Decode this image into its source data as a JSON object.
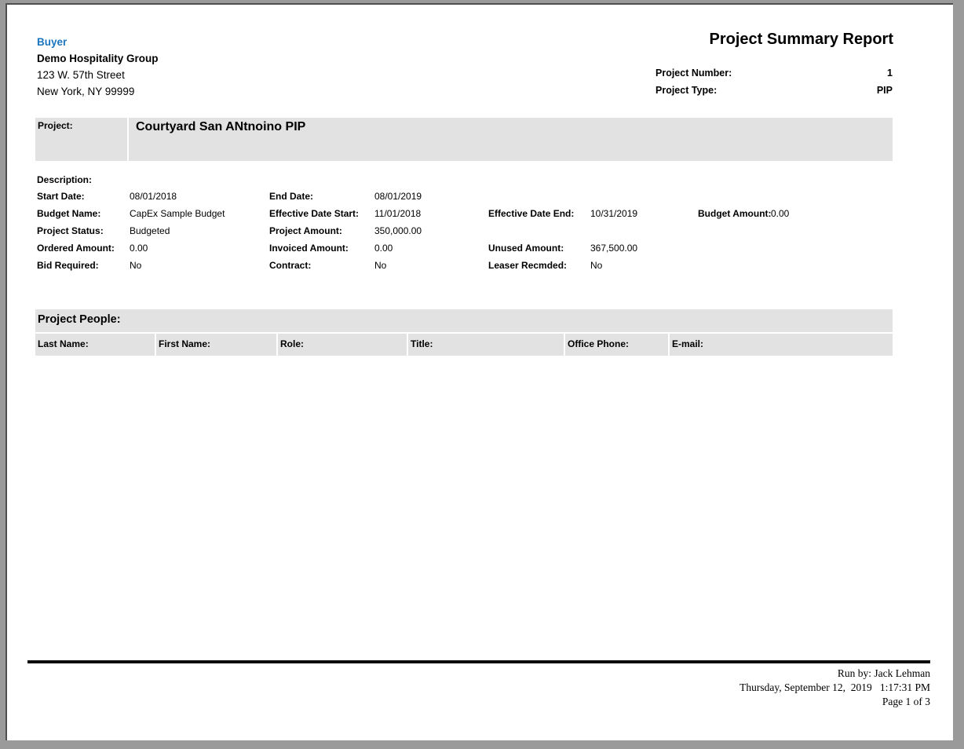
{
  "colors": {
    "accent_blue": "#1b76bf",
    "band_gray": "#e2e2e2",
    "frame_gray": "#9a9a9a",
    "page_border": "#4f4f4f",
    "rule_black": "#0a0a0a"
  },
  "buyer": {
    "label": "Buyer",
    "company": "Demo Hospitality Group",
    "address_line1": "123 W. 57th Street",
    "address_line2": "New York, NY 99999"
  },
  "header": {
    "report_title": "Project Summary Report",
    "project_number_label": "Project Number:",
    "project_number_value": "1",
    "project_type_label": "Project Type:",
    "project_type_value": "PIP"
  },
  "project_banner": {
    "label": "Project:",
    "value": "Courtyard San ANtnoino PIP"
  },
  "description": {
    "label": "Description:",
    "value": ""
  },
  "fields": {
    "start_date": {
      "label": "Start Date:",
      "value": "08/01/2018"
    },
    "end_date": {
      "label": "End Date:",
      "value": "08/01/2019"
    },
    "budget_name": {
      "label": "Budget Name:",
      "value": "CapEx Sample Budget"
    },
    "effective_date_start": {
      "label": "Effective Date Start:",
      "value": "11/01/2018"
    },
    "effective_date_end": {
      "label": "Effective Date End:",
      "value": "10/31/2019"
    },
    "budget_amount": {
      "label": "Budget Amount:",
      "value": "0.00"
    },
    "project_status": {
      "label": "Project Status:",
      "value": "Budgeted"
    },
    "project_amount": {
      "label": "Project Amount:",
      "value": "350,000.00"
    },
    "ordered_amount": {
      "label": "Ordered Amount:",
      "value": "0.00"
    },
    "invoiced_amount": {
      "label": "Invoiced Amount:",
      "value": "0.00"
    },
    "unused_amount": {
      "label": "Unused Amount:",
      "value": "367,500.00"
    },
    "bid_required": {
      "label": "Bid Required:",
      "value": "No"
    },
    "contract": {
      "label": "Contract:",
      "value": "No"
    },
    "leaser_recmded": {
      "label": "Leaser Recmded:",
      "value": "No"
    }
  },
  "project_people": {
    "section_title": "Project People:",
    "columns": [
      "Last Name:",
      "First Name:",
      "Role:",
      "Title:",
      "Office Phone:",
      "E-mail:"
    ],
    "rows": []
  },
  "footer": {
    "run_by": "Run by: Jack Lehman",
    "datetime": "Thursday, September 12,  2019   1:17:31 PM",
    "page": "Page 1 of 3"
  }
}
